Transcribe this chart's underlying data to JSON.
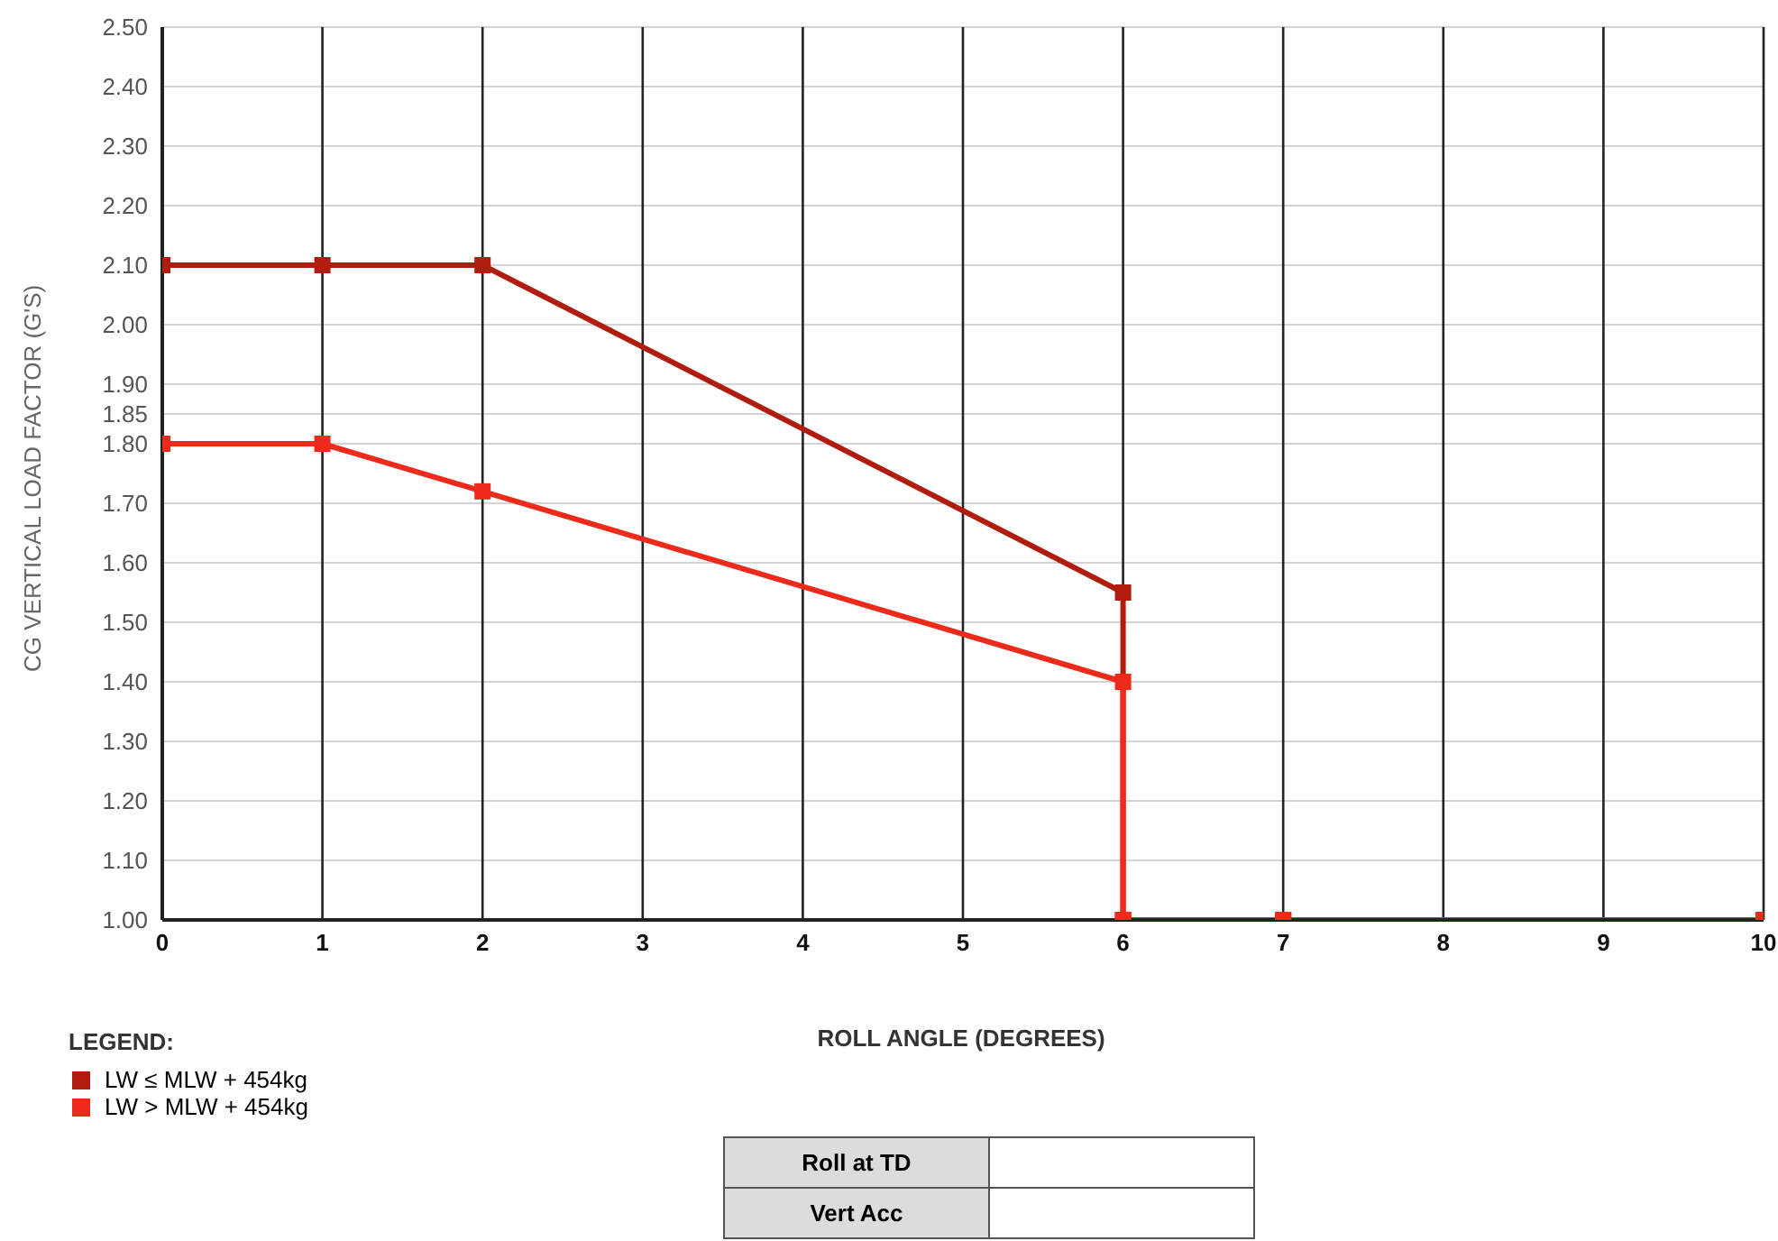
{
  "chart_data": {
    "type": "line",
    "xlabel": "ROLL ANGLE (DEGREES)",
    "ylabel": "CG VERTICAL LOAD FACTOR (G'S)",
    "legend_title": "LEGEND:",
    "xlim": [
      0,
      10
    ],
    "xticks": [
      0,
      1,
      2,
      3,
      4,
      5,
      6,
      7,
      8,
      9,
      10
    ],
    "ylim": [
      1,
      2.5
    ],
    "yticks": [
      {
        "value": 1,
        "label": "1.00"
      },
      {
        "value": 1.1,
        "label": "1.10"
      },
      {
        "value": 1.2,
        "label": "1.20"
      },
      {
        "value": 1.3,
        "label": "1.30"
      },
      {
        "value": 1.4,
        "label": "1.40"
      },
      {
        "value": 1.5,
        "label": "1.50"
      },
      {
        "value": 1.6,
        "label": "1.60"
      },
      {
        "value": 1.7,
        "label": "1.70"
      },
      {
        "value": 1.8,
        "label": "1.80"
      },
      {
        "value": 1.85,
        "label": "1.85"
      },
      {
        "value": 1.9,
        "label": "1.90"
      },
      {
        "value": 2,
        "label": "2.00"
      },
      {
        "value": 2.1,
        "label": "2.10"
      },
      {
        "value": 2.2,
        "label": "2.20"
      },
      {
        "value": 2.3,
        "label": "2.30"
      },
      {
        "value": 2.4,
        "label": "2.40"
      },
      {
        "value": 2.5,
        "label": "2.50"
      }
    ],
    "grid": true,
    "legend": "bottom left",
    "marker": "square",
    "line_style": "solid",
    "series": [
      {
        "name": "LW ≤  MLW + 454kg",
        "color": "#b01c0e",
        "x": [
          0,
          1,
          2,
          6,
          6,
          7,
          10
        ],
        "values": [
          2.1,
          2.1,
          2.1,
          1.55,
          1,
          1,
          1
        ]
      },
      {
        "name": "LW >  MLW + 454kg",
        "color": "#ee2a1a",
        "x": [
          0,
          1,
          2,
          6,
          6,
          7,
          10
        ],
        "values": [
          1.8,
          1.8,
          1.72,
          1.4,
          1,
          1,
          1
        ]
      }
    ],
    "annotations": [
      "Roll at TD",
      "Vert Acc"
    ]
  }
}
